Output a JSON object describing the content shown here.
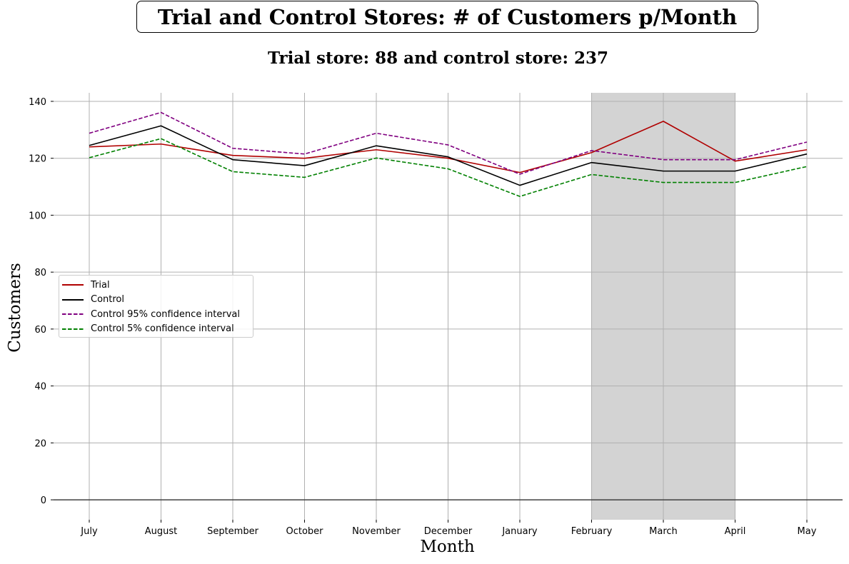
{
  "chart_data": {
    "type": "line",
    "title": "Trial and Control Stores: # of Customers p/Month",
    "subtitle": "Trial store: 88 and control store: 237",
    "xlabel": "Month",
    "ylabel": "Customers",
    "categories": [
      "July",
      "August",
      "September",
      "October",
      "November",
      "December",
      "January",
      "February",
      "March",
      "April",
      "May"
    ],
    "ylim": [
      -7,
      143
    ],
    "yticks": [
      0,
      20,
      40,
      60,
      80,
      100,
      120,
      140
    ],
    "grid": true,
    "legend_position": "center-left",
    "shaded_region": {
      "from": "February",
      "to": "April",
      "color": "#d3d3d3"
    },
    "series": [
      {
        "name": "Trial",
        "color": "#b00000",
        "style": "solid",
        "values": [
          124,
          125,
          121,
          120,
          123,
          120,
          115,
          122,
          133,
          119,
          123
        ]
      },
      {
        "name": "Control",
        "color": "#000000",
        "style": "solid",
        "values": [
          124.5,
          131.4,
          119.5,
          117.4,
          124.4,
          120.5,
          110.5,
          118.5,
          115.5,
          115.5,
          121.5
        ]
      },
      {
        "name": "Control 95% confidence interval",
        "color": "#800080",
        "style": "dashed",
        "values": [
          128.8,
          136.1,
          123.5,
          121.5,
          128.8,
          124.7,
          114.4,
          122.7,
          119.5,
          119.5,
          125.7
        ]
      },
      {
        "name": "Control 5% confidence interval",
        "color": "#008000",
        "style": "dashed",
        "values": [
          120.2,
          126.9,
          115.3,
          113.3,
          120.1,
          116.3,
          106.6,
          114.3,
          111.5,
          111.5,
          117.1
        ]
      }
    ]
  }
}
